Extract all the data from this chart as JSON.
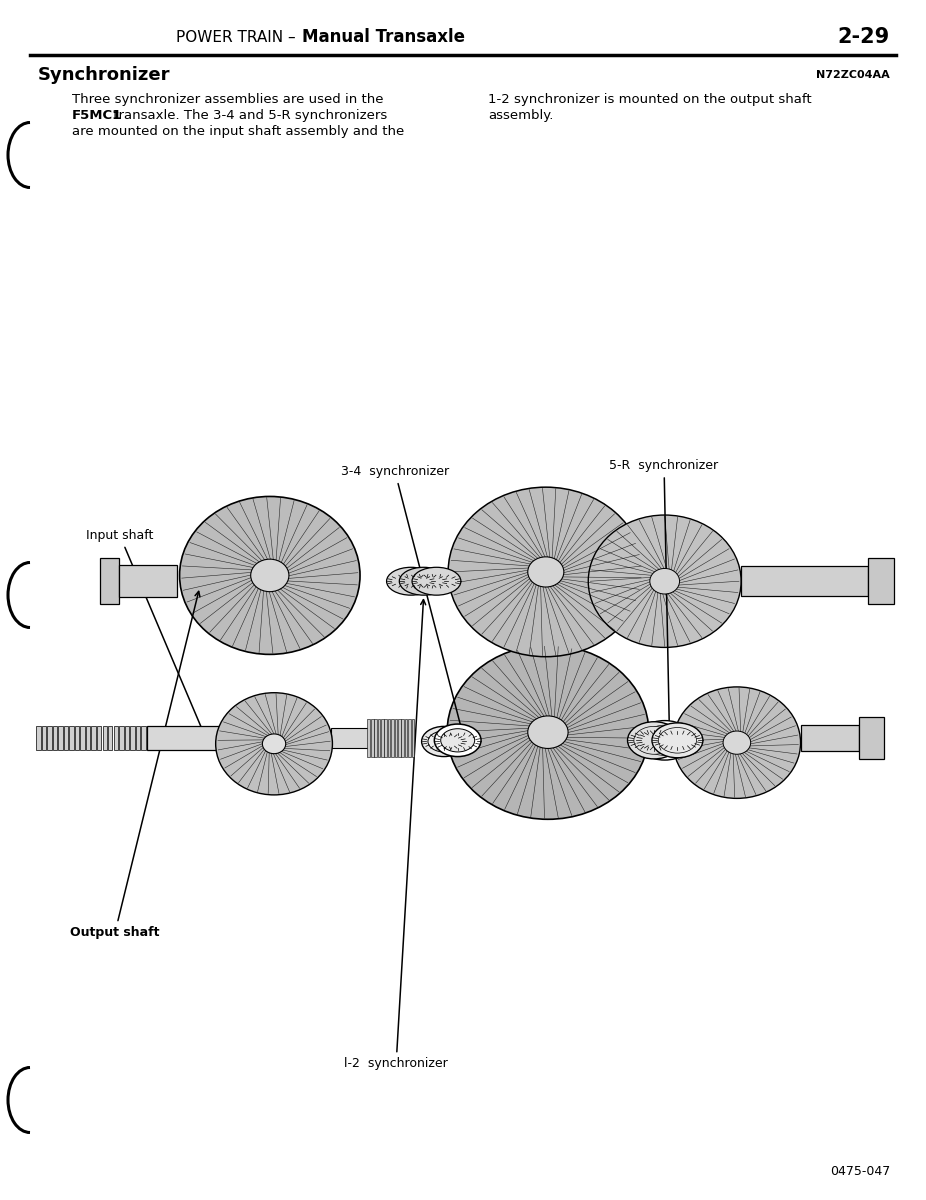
{
  "page_title_normal": "POWER TRAIN – ",
  "page_title_bold": "Manual Transaxle",
  "page_number": "2-29",
  "section_title": "Synchronizer",
  "section_code": "N72ZC04AA",
  "body_left_1": "Three synchronizer assemblies are used in the",
  "body_left_2_bold": "F5MC1",
  "body_left_2_rest": " transaxle. The 3-4 and 5-R synchronizers",
  "body_left_3": "are mounted on the input shaft assembly and the",
  "body_right_1": "1-2 synchronizer is mounted on the output shaft",
  "body_right_2": "assembly.",
  "label_34_sync": "3-4  synchronizer",
  "label_5R_sync": "5-R  synchronizer",
  "label_input": "Input shaft",
  "label_output": "Output shaft",
  "label_12_sync": "l-2  synchronizer",
  "figure_number": "0475-047",
  "bg_color": "#ffffff",
  "text_color": "#000000"
}
